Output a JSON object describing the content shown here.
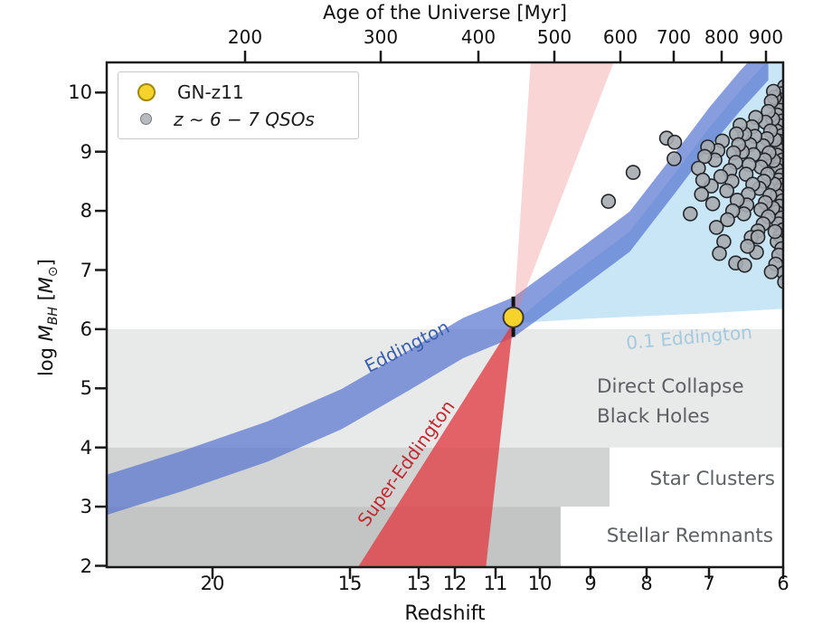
{
  "figure": {
    "top_axis_title": "Age of the Universe [Myr]",
    "bottom_axis_title": "Redshift",
    "y_axis_title_parts": {
      "prefix": "log ",
      "m1": "M",
      "sub1": "BH",
      "mid": " [",
      "m2": "M",
      "sub2": "⊙",
      "close": "]"
    }
  },
  "legend": {
    "items": [
      {
        "label": "GN-z11",
        "marker": "gold-circle",
        "marker_color": "#f6d32a"
      },
      {
        "label": "z ∼ 6 − 7 QSOs",
        "marker": "gray-circle",
        "marker_color": "#b7babe"
      }
    ]
  },
  "annotations": {
    "eddington": "Eddington",
    "super_eddington": "Super-Eddington",
    "sub_eddington": "0.1 Eddington",
    "direct_collapse_line1": "Direct Collapse",
    "direct_collapse_line2": "Black Holes",
    "star_clusters": "Star Clusters",
    "stellar_remnants": "Stellar Remnants"
  },
  "colors": {
    "background": "#ffffff",
    "frame": "#1a1a1a",
    "eddington_band": "rgba(80,110,205,0.68)",
    "eddington_text": "#3a5fae",
    "sub_eddington_wedge": "rgba(135,200,235,0.45)",
    "sub_eddington_text": "#a4cadf",
    "super_eddington_wedge": "rgba(224,60,66,0.78)",
    "super_eddington_cone": "rgba(235,125,125,0.32)",
    "super_eddington_text": "#c22b33",
    "region_direct_collapse": "#e8e9e9",
    "region_star_clusters": "#d2d4d4",
    "region_stellar_remnants": "#c3c5c5",
    "region_text": "#5d6164",
    "qso_fill": "#a6abb0",
    "qso_stroke": "#23272b",
    "gnz11_fill": "#f6d32a",
    "gnz11_stroke": "#3a3a3a"
  },
  "chart_data": {
    "type": "scatter",
    "title": "",
    "x_axis": {
      "label": "Redshift",
      "ticks": [
        20,
        15,
        13,
        12,
        11,
        10,
        9,
        8,
        7,
        6
      ],
      "range": [
        24.5,
        6
      ],
      "inverted": true,
      "scale": "log-age"
    },
    "top_axis": {
      "label": "Age of the Universe [Myr]",
      "ticks": [
        200,
        300,
        400,
        500,
        600,
        700,
        800,
        900
      ],
      "scale": "log"
    },
    "y_axis": {
      "label": "log M_BH [M_sun]",
      "ticks": [
        10,
        9,
        8,
        7,
        6,
        5,
        4,
        3,
        2
      ],
      "range": [
        1.95,
        10.55
      ]
    },
    "grid": false,
    "legend_position": "upper left",
    "gn_z11": {
      "z": 10.6,
      "log_mbh": 6.2,
      "err_plus": 0.35,
      "err_minus": 0.33
    },
    "regions": [
      {
        "name": "Direct Collapse Black Holes",
        "log_mbh": [
          4.0,
          6.0
        ],
        "z_range": [
          24.5,
          6.0
        ]
      },
      {
        "name": "Star Clusters",
        "log_mbh": [
          3.0,
          4.0
        ],
        "z_range": [
          24.5,
          8.66
        ]
      },
      {
        "name": "Stellar Remnants",
        "log_mbh": [
          1.95,
          3.0
        ],
        "z_range": [
          24.5,
          9.59
        ]
      }
    ],
    "tracks": {
      "eddington": {
        "name": "Eddington",
        "half_width_dex": 0.34,
        "points": [
          [
            24.5,
            3.2
          ],
          [
            21.3,
            3.6
          ],
          [
            18.0,
            4.1
          ],
          [
            15.3,
            4.65
          ],
          [
            13.3,
            5.3
          ],
          [
            11.8,
            5.85
          ],
          [
            10.6,
            6.2
          ],
          [
            9.4,
            6.9
          ],
          [
            8.3,
            7.65
          ],
          [
            7.5,
            8.7
          ],
          [
            7.0,
            9.4
          ],
          [
            6.6,
            10.0
          ],
          [
            6.2,
            10.55
          ]
        ]
      },
      "sub_eddington": {
        "name": "0.1 Eddington",
        "polygon": [
          [
            10.6,
            6.1
          ],
          [
            9.4,
            6.9
          ],
          [
            8.3,
            7.65
          ],
          [
            7.5,
            8.7
          ],
          [
            7.0,
            9.4
          ],
          [
            6.6,
            10.0
          ],
          [
            6.2,
            10.55
          ],
          [
            5.95,
            10.6
          ],
          [
            5.95,
            6.35
          ],
          [
            7.0,
            6.27
          ],
          [
            9.0,
            6.18
          ]
        ]
      },
      "super_eddington_down": {
        "name": "Super-Eddington",
        "polygon": [
          [
            10.6,
            6.12
          ],
          [
            11.25,
            1.9
          ],
          [
            14.85,
            1.9
          ]
        ]
      },
      "super_eddington_up": {
        "name": "Super-Eddington cone",
        "polygon": [
          [
            10.6,
            6.12
          ],
          [
            10.2,
            10.6
          ],
          [
            8.55,
            10.6
          ]
        ]
      }
    },
    "qso_points": [
      [
        5.98,
        10.1
      ],
      [
        6.02,
        9.98
      ],
      [
        6.06,
        9.88
      ],
      [
        6.0,
        9.8
      ],
      [
        6.04,
        9.7
      ],
      [
        6.08,
        9.62
      ],
      [
        6.01,
        9.52
      ],
      [
        6.05,
        9.44
      ],
      [
        6.09,
        9.35
      ],
      [
        6.02,
        9.27
      ],
      [
        6.06,
        9.18
      ],
      [
        6.0,
        9.1
      ],
      [
        6.04,
        9.02
      ],
      [
        6.08,
        8.94
      ],
      [
        6.01,
        8.86
      ],
      [
        6.05,
        8.78
      ],
      [
        6.09,
        8.7
      ],
      [
        6.02,
        8.6
      ],
      [
        6.06,
        8.52
      ],
      [
        6.0,
        8.44
      ],
      [
        6.04,
        8.35
      ],
      [
        6.08,
        8.26
      ],
      [
        6.01,
        8.17
      ],
      [
        6.05,
        8.08
      ],
      [
        6.09,
        7.98
      ],
      [
        6.02,
        7.88
      ],
      [
        6.06,
        7.78
      ],
      [
        6.0,
        7.68
      ],
      [
        6.04,
        7.58
      ],
      [
        6.08,
        7.48
      ],
      [
        6.02,
        7.36
      ],
      [
        6.06,
        7.25
      ],
      [
        6.1,
        7.1
      ],
      [
        5.99,
        6.95
      ],
      [
        6.12,
        9.92
      ],
      [
        6.14,
        9.55
      ],
      [
        6.11,
        9.2
      ],
      [
        6.13,
        8.85
      ],
      [
        6.12,
        8.45
      ],
      [
        6.14,
        8.05
      ],
      [
        6.11,
        7.65
      ],
      [
        6.13,
        10.02
      ],
      [
        6.16,
        9.85
      ],
      [
        6.2,
        9.68
      ],
      [
        6.24,
        9.5
      ],
      [
        6.17,
        9.35
      ],
      [
        6.22,
        9.22
      ],
      [
        6.27,
        9.1
      ],
      [
        6.19,
        8.98
      ],
      [
        6.25,
        8.86
      ],
      [
        6.3,
        8.74
      ],
      [
        6.21,
        8.62
      ],
      [
        6.26,
        8.5
      ],
      [
        6.32,
        8.38
      ],
      [
        6.18,
        8.26
      ],
      [
        6.24,
        8.14
      ],
      [
        6.3,
        8.02
      ],
      [
        6.2,
        7.9
      ],
      [
        6.27,
        7.78
      ],
      [
        6.34,
        7.66
      ],
      [
        6.37,
        9.58
      ],
      [
        6.42,
        9.42
      ],
      [
        6.38,
        9.26
      ],
      [
        6.45,
        9.12
      ],
      [
        6.4,
        8.95
      ],
      [
        6.46,
        8.78
      ],
      [
        6.5,
        8.62
      ],
      [
        6.41,
        8.45
      ],
      [
        6.47,
        8.28
      ],
      [
        6.52,
        9.3
      ],
      [
        6.55,
        9.0
      ],
      [
        6.49,
        8.1
      ],
      [
        6.43,
        7.55
      ],
      [
        6.36,
        7.3
      ],
      [
        6.53,
        7.95
      ],
      [
        6.48,
        7.4
      ],
      [
        6.58,
        9.45
      ],
      [
        6.63,
        9.3
      ],
      [
        6.6,
        9.12
      ],
      [
        6.67,
        8.98
      ],
      [
        6.64,
        8.82
      ],
      [
        6.72,
        8.68
      ],
      [
        6.69,
        8.5
      ],
      [
        6.76,
        8.34
      ],
      [
        6.62,
        8.18
      ],
      [
        6.68,
        8.0
      ],
      [
        6.75,
        7.85
      ],
      [
        6.82,
        9.18
      ],
      [
        6.88,
        9.02
      ],
      [
        6.92,
        8.86
      ],
      [
        6.84,
        8.58
      ],
      [
        6.97,
        8.42
      ],
      [
        7.02,
        9.08
      ],
      [
        7.07,
        8.92
      ],
      [
        6.9,
        7.72
      ],
      [
        6.64,
        7.12
      ],
      [
        6.8,
        7.48
      ],
      [
        7.12,
        8.28
      ],
      [
        6.95,
        8.12
      ],
      [
        7.17,
        8.72
      ],
      [
        7.1,
        8.52
      ],
      [
        6.86,
        7.28
      ],
      [
        7.68,
        9.23
      ],
      [
        7.55,
        9.16
      ],
      [
        7.56,
        8.88
      ],
      [
        8.68,
        8.16
      ],
      [
        8.24,
        8.65
      ],
      [
        7.3,
        7.95
      ],
      [
        6.34,
        7.56
      ],
      [
        6.52,
        7.08
      ],
      [
        6.16,
        6.97
      ],
      [
        5.98,
        6.8
      ]
    ]
  }
}
